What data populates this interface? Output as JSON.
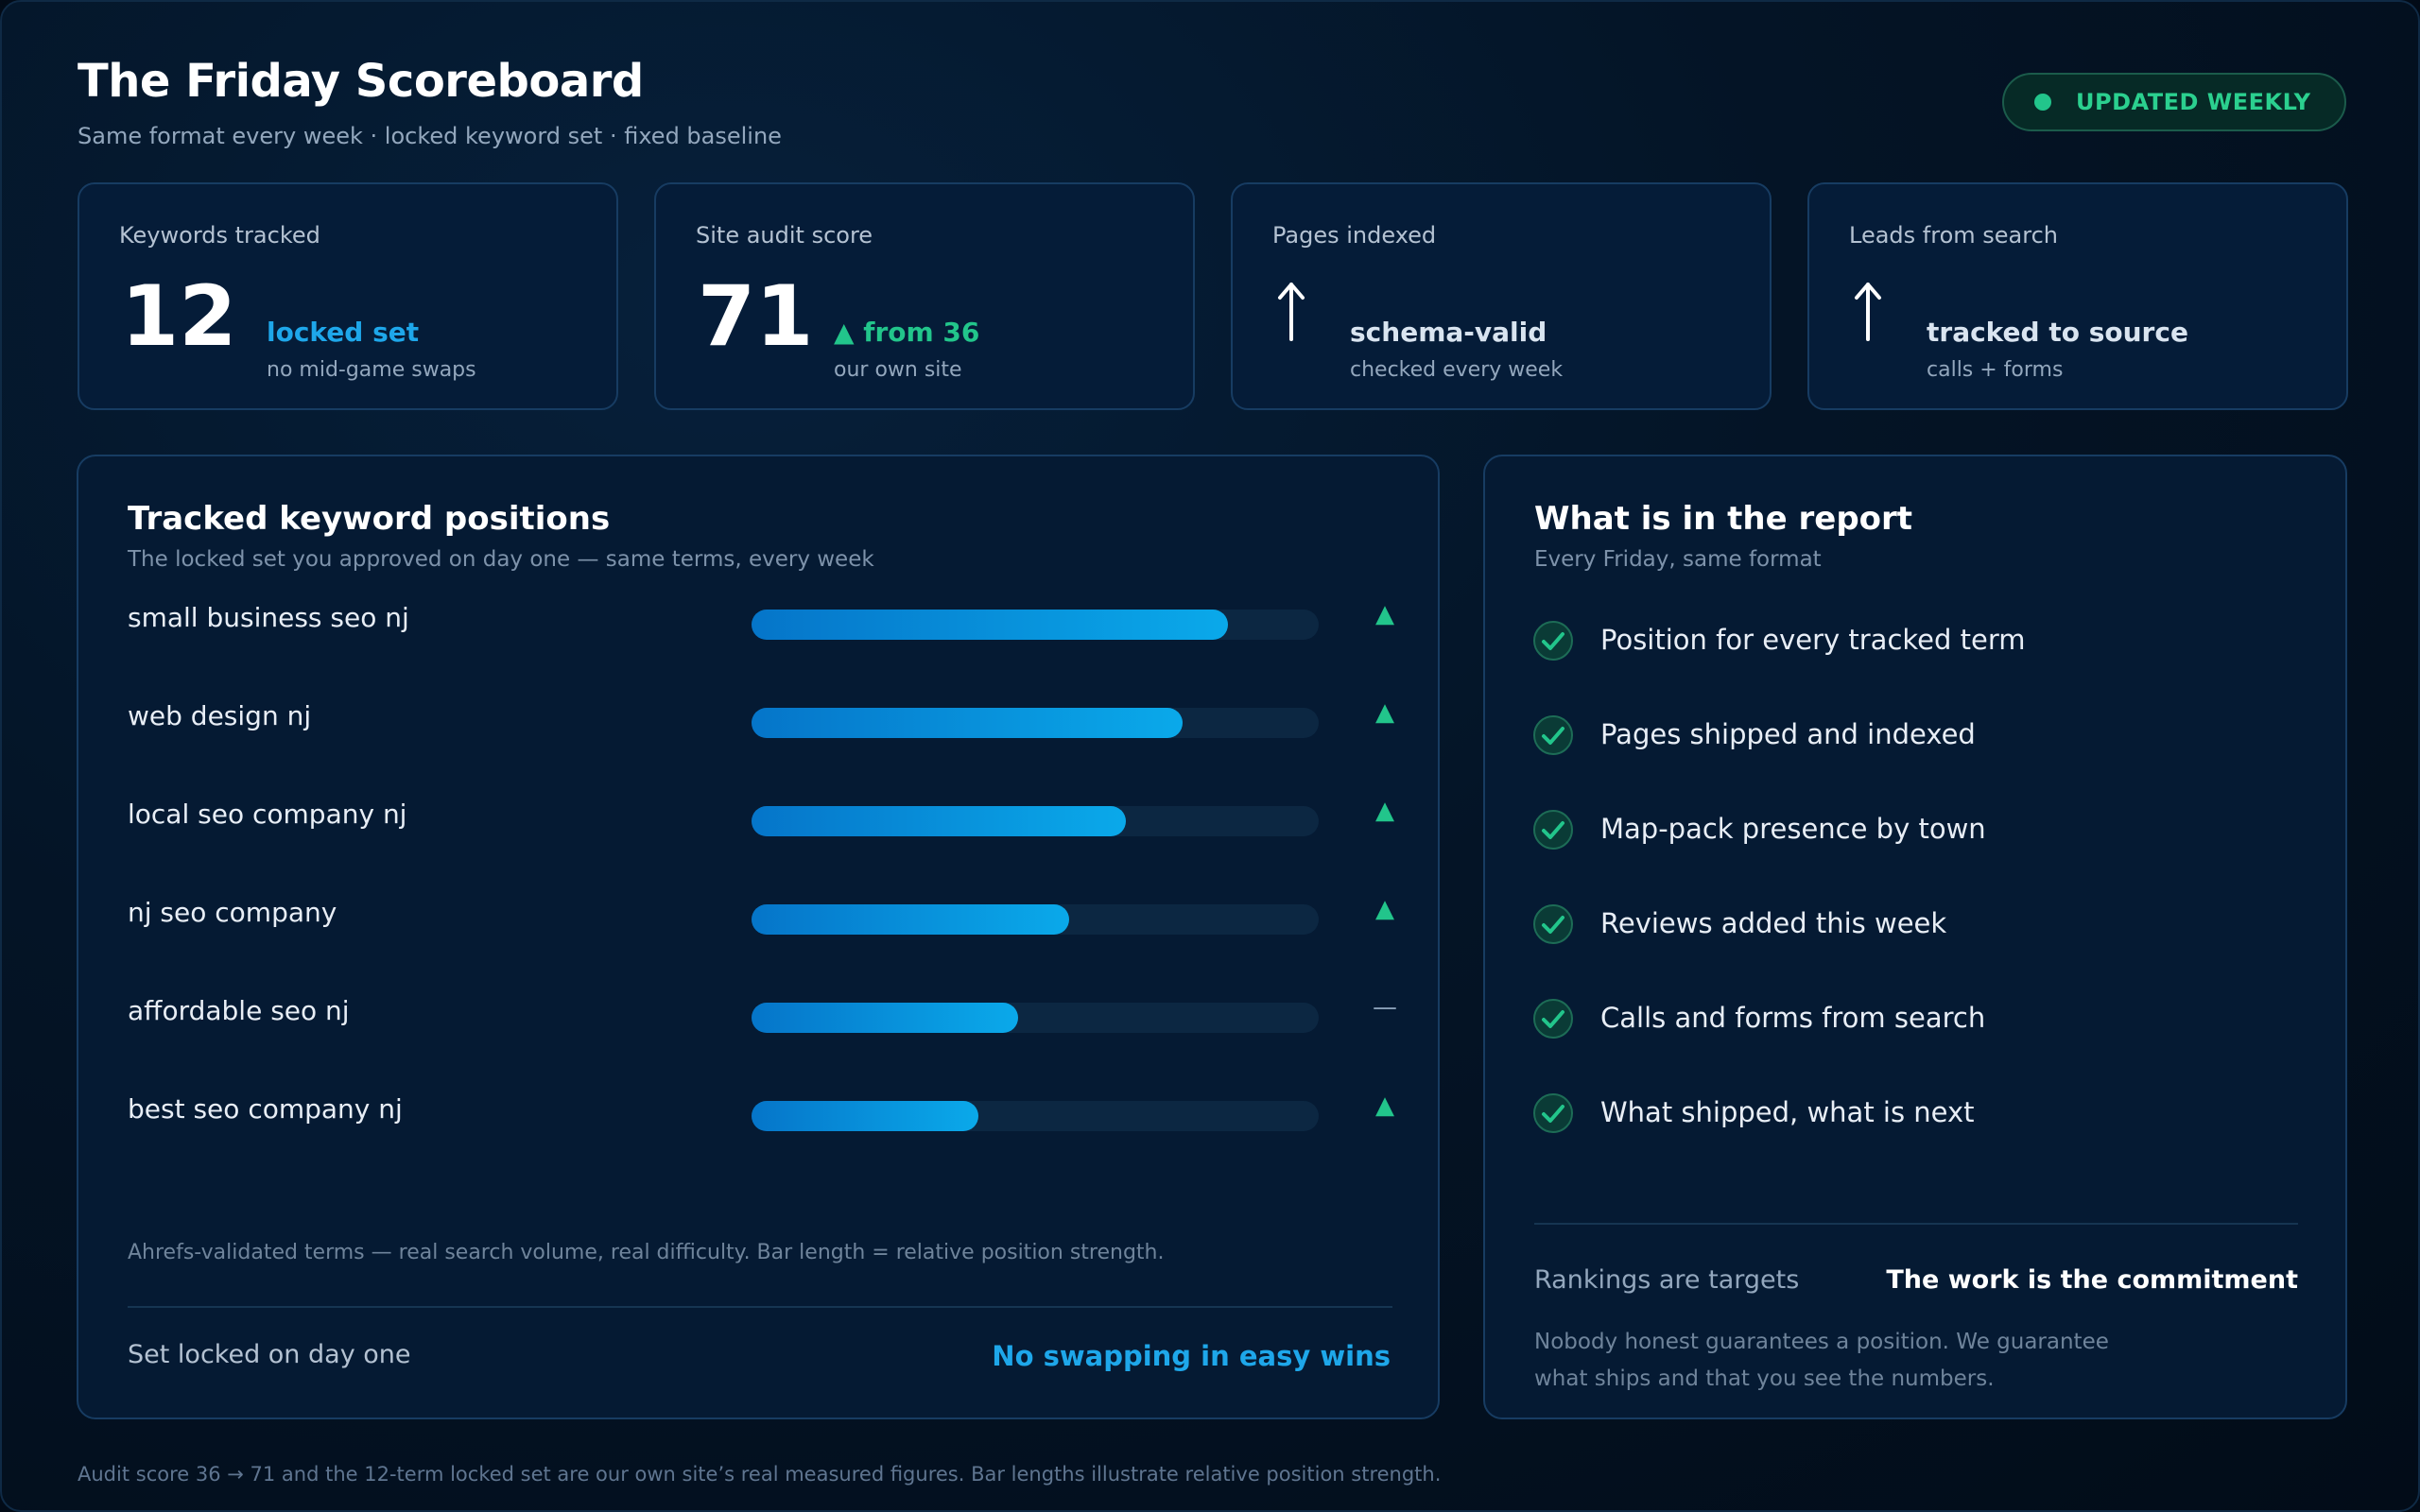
{
  "header": {
    "title": "The Friday Scoreboard",
    "subtitle": "Same format every week · locked keyword set · fixed baseline",
    "badge": "UPDATED WEEKLY"
  },
  "stats": [
    {
      "label": "Keywords tracked",
      "value": "12",
      "detail": "locked set",
      "note": "no mid-game swaps"
    },
    {
      "label": "Site audit score",
      "value": "71",
      "detail": "▲ from 36",
      "note": "our own site"
    },
    {
      "label": "Pages indexed",
      "value_icon": "up-arrow-icon",
      "detail": "schema-valid",
      "note": "checked every week"
    },
    {
      "label": "Leads from search",
      "value_icon": "up-arrow-icon",
      "detail": "tracked to source",
      "note": "calls + forms"
    }
  ],
  "keywords_panel": {
    "title": "Tracked keyword positions",
    "subtitle": "The locked set you approved on day one — same terms, every week",
    "keywords": [
      {
        "term": "small business seo nj",
        "strength": 0.84,
        "trend": "▲"
      },
      {
        "term": "web design nj",
        "strength": 0.76,
        "trend": "▲"
      },
      {
        "term": "local seo company nj",
        "strength": 0.66,
        "trend": "▲"
      },
      {
        "term": "nj seo company",
        "strength": 0.56,
        "trend": "▲"
      },
      {
        "term": "affordable seo nj",
        "strength": 0.47,
        "trend": "—"
      },
      {
        "term": "best seo company nj",
        "strength": 0.4,
        "trend": "▲"
      }
    ],
    "footnote": "Ahrefs-validated terms — real search volume, real difficulty. Bar length = relative position strength.",
    "footer_left": "Set locked on day one",
    "footer_right": "No swapping in easy wins"
  },
  "report_panel": {
    "title": "What is in the report",
    "subtitle": "Every Friday, same format",
    "items": [
      "Position for every tracked term",
      "Pages shipped and indexed",
      "Map-pack presence by town",
      "Reviews added this week",
      "Calls and forms from search",
      "What shipped, what is next"
    ],
    "rankings_label": "Rankings are targets",
    "commitment_label": "The work is the commitment",
    "guarantee_note": "Nobody honest guarantees a position. We guarantee what ships and that you see the numbers."
  },
  "disclaimer": "Audit score 36 → 71 and the 12-term locked set are our own site’s real measured figures. Bar lengths illustrate relative position strength.",
  "colors": {
    "accent_blue": "#1ea7ea",
    "accent_green": "#22c58b",
    "background": "#041426",
    "card": "#051c38"
  }
}
